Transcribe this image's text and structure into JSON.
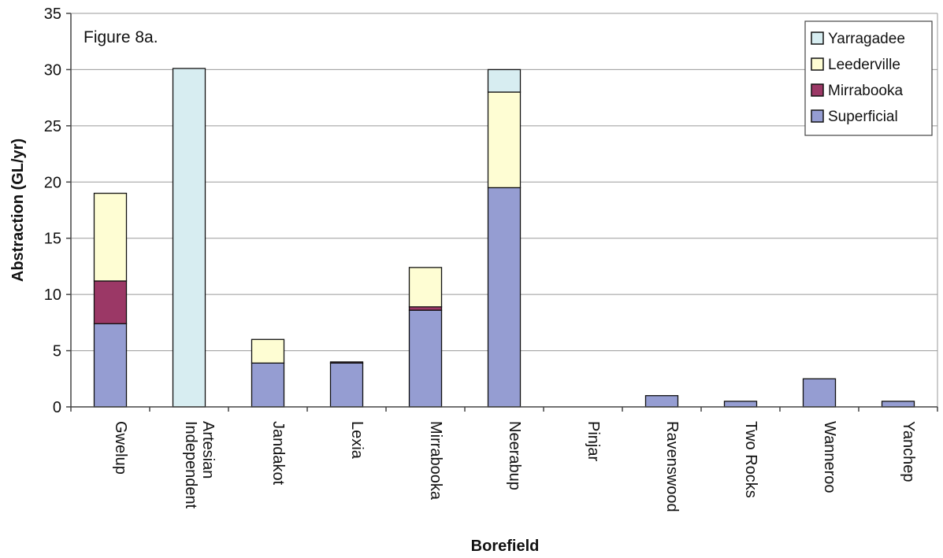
{
  "chart_data": {
    "type": "bar",
    "stacked": true,
    "annotation": "Figure 8a.",
    "xlabel": "Borefield",
    "ylabel": "Abstraction (GL/yr)",
    "ylim": [
      0,
      35
    ],
    "yticks": [
      0,
      5,
      10,
      15,
      20,
      25,
      30,
      35
    ],
    "grid": true,
    "legend_position": "top-right",
    "categories": [
      [
        "Gwelup"
      ],
      [
        "Independent",
        "Artesian"
      ],
      [
        "Jandakot"
      ],
      [
        "Lexia"
      ],
      [
        "Mirrabooka"
      ],
      [
        "Neerabup"
      ],
      [
        "Pinjar"
      ],
      [
        "Ravenswood"
      ],
      [
        "Two Rocks"
      ],
      [
        "Wanneroo"
      ],
      [
        "Yanchep"
      ]
    ],
    "series": [
      {
        "name": "Superficial",
        "color": "#959DD2",
        "values": [
          7.4,
          0,
          3.9,
          3.9,
          8.6,
          19.5,
          0,
          1.0,
          0.5,
          2.5,
          0.5
        ]
      },
      {
        "name": "Mirrabooka",
        "color": "#9B3866",
        "values": [
          3.8,
          0,
          0,
          0.1,
          0.3,
          0,
          0,
          0,
          0,
          0,
          0
        ]
      },
      {
        "name": "Leederville",
        "color": "#FEFDD3",
        "values": [
          7.8,
          0,
          2.1,
          0,
          3.5,
          8.5,
          0,
          0,
          0,
          0,
          0
        ]
      },
      {
        "name": "Yarragadee",
        "color": "#D7EDF1",
        "values": [
          0,
          30.1,
          0,
          0,
          0,
          2.0,
          0,
          0,
          0,
          0,
          0
        ]
      }
    ],
    "legend_order": [
      "Yarragadee",
      "Leederville",
      "Mirrabooka",
      "Superficial"
    ]
  }
}
